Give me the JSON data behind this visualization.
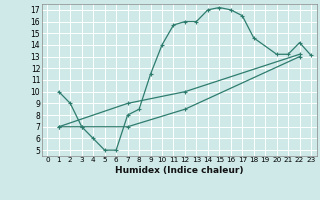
{
  "xlabel": "Humidex (Indice chaleur)",
  "bg_color": "#cfe8e8",
  "grid_color": "#ffffff",
  "line_color": "#2e7d6e",
  "xlim": [
    -0.5,
    23.5
  ],
  "ylim": [
    4.5,
    17.5
  ],
  "xticks": [
    0,
    1,
    2,
    3,
    4,
    5,
    6,
    7,
    8,
    9,
    10,
    11,
    12,
    13,
    14,
    15,
    16,
    17,
    18,
    19,
    20,
    21,
    22,
    23
  ],
  "yticks": [
    5,
    6,
    7,
    8,
    9,
    10,
    11,
    12,
    13,
    14,
    15,
    16,
    17
  ],
  "line1_x": [
    1,
    2,
    3,
    4,
    5,
    6,
    7,
    8,
    9,
    10,
    11,
    12,
    13,
    14,
    15,
    16,
    17,
    18,
    20,
    21,
    22,
    23
  ],
  "line1_y": [
    10,
    9,
    7,
    6,
    5,
    5,
    8,
    8.5,
    11.5,
    14,
    15.7,
    16,
    16,
    17,
    17.2,
    17,
    16.5,
    14.6,
    13.2,
    13.2,
    14.2,
    13.1
  ],
  "line2_x": [
    1,
    3,
    7,
    12,
    22
  ],
  "line2_y": [
    7,
    7,
    7,
    8.5,
    13
  ],
  "line3_x": [
    1,
    7,
    12,
    22
  ],
  "line3_y": [
    7,
    9,
    10,
    13.2
  ]
}
